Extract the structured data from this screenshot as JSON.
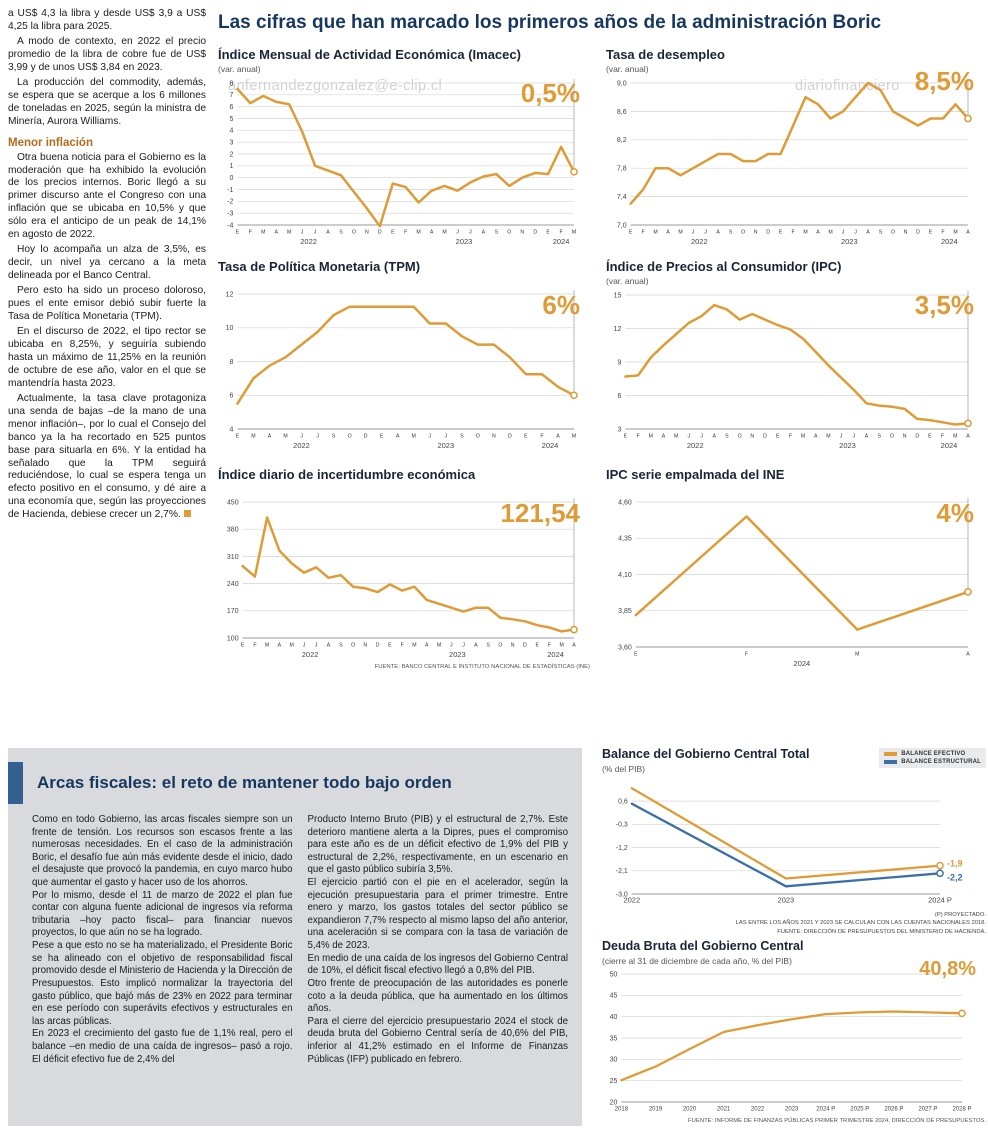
{
  "page": {
    "main_title": "Las cifras que han marcado los primeros años de la administración Boric",
    "watermark_top": "anfernandezgonzalez@e-clip.cl",
    "watermark_right": "diariofinanciero",
    "watermark_bottom": "ero#agonzalez@e-clip.cl"
  },
  "left_article": {
    "intro": [
      "a US$ 4,3 la libra y desde US$ 3,9 a US$ 4,25 la libra para 2025.",
      "A modo de contexto, en 2022 el precio promedio de la libra de cobre fue de US$ 3,99 y de unos US$ 3,84 en 2023.",
      "La producción del commodity, además, se espera que se acerque a los 6 millones de toneladas en 2025, según la ministra de Minería, Aurora Williams."
    ],
    "subhead": "Menor inflación",
    "body": [
      "Otra buena noticia para el Gobierno es la moderación que ha exhibido la evolución de los precios internos. Boric llegó a su primer discurso ante el Congreso con una inflación que se ubicaba en 10,5% y que sólo era el anticipo de un peak de 14,1% en agosto de 2022.",
      "Hoy lo acompaña un alza de 3,5%, es decir, un nivel ya cercano a la meta delineada por el Banco Central.",
      "Pero esto ha sido un proceso doloroso, pues el ente emisor debió subir fuerte la Tasa de Política Monetaria (TPM).",
      "En el discurso de 2022, el tipo rector se ubicaba en 8,25%, y seguiría subiendo hasta un máximo de 11,25% en la reunión de octubre de ese año, valor en el que se mantendría hasta 2023.",
      "Actualmente, la tasa clave protagoniza una senda de bajas –de la mano de una menor inflación–, por lo cual el Consejo del banco ya la ha recortado en 525 puntos base para situarla en 6%. Y la entidad ha señalado que la TPM seguirá reduciéndose, lo cual se espera tenga un efecto positivo en el consumo, y dé aire a una economía que, según las proyecciones de Hacienda, debiese crecer un 2,7%."
    ]
  },
  "fiscal_article": {
    "title": "Arcas fiscales: el reto de mantener todo bajo orden",
    "col1": [
      "Como en todo Gobierno, las arcas fiscales siempre son un frente de tensión. Los recursos son escasos frente a las numerosas necesidades. En el caso de la administración Boric, el desafío fue aún más evidente desde el inicio, dado el desajuste que provocó la pandemia, en cuyo marco hubo que aumentar el gasto y hacer uso de los ahorros.",
      "Por lo mismo, desde el 11 de marzo de 2022 el plan fue contar con alguna fuente adicional de ingresos vía reforma tributaria –hoy pacto fiscal– para financiar nuevos proyectos, lo que aún no se ha logrado.",
      "Pese a que esto no se ha materializado, el Presidente Boric se ha alineado con el objetivo de responsabilidad fiscal promovido desde el Ministerio de Hacienda y la Dirección de Presupuestos. Esto implicó normalizar la trayectoria del gasto público, que bajó más de 23% en 2022 para terminar en ese período con superávits efectivos y estructurales en las arcas públicas.",
      "En 2023 el crecimiento del gasto fue de 1,1% real, pero el balance –en medio de una caída de ingresos– pasó a rojo. El déficit efectivo fue de 2,4% del"
    ],
    "col2": [
      "Producto Interno Bruto (PIB) y el estructural de 2,7%. Este deterioro mantiene alerta a la Dipres, pues el compromiso para este año es de un déficit efectivo de 1,9% del PIB y estructural de 2,2%, respectivamente, en un escenario en que el gasto público subiría 3,5%.",
      "El ejercicio partió con el pie en el acelerador, según la ejecución presupuestaria para el primer trimestre. Entre enero y marzo, los gastos totales del sector público se expandieron 7,7% respecto al mismo lapso del año anterior, una aceleración si se compara con la tasa de variación de 5,4% de 2023.",
      "En medio de una caída de los ingresos del Gobierno Central de 10%, el déficit fiscal efectivo llegó a 0,8% del PIB.",
      "Otro frente de preocupación de las autoridades es ponerle coto a la deuda pública, que ha aumentado en los últimos años.",
      "Para el cierre del ejercicio presupuestario 2024 el stock de deuda bruta del Gobierno Central sería de 40,6% del PIB, inferior al 41,2% estimado en el Informe de Finanzas Públicas (IFP) publicado en febrero."
    ]
  },
  "chart_data": [
    {
      "type": "line",
      "title": "Índice Mensual de Actividad Económica (Imacec)",
      "subtitle": "(var. anual)",
      "value_label": "0,5%",
      "x_labels": [
        "E",
        "F",
        "M",
        "A",
        "M",
        "J",
        "J",
        "A",
        "S",
        "O",
        "N",
        "D",
        "E",
        "F",
        "M",
        "A",
        "M",
        "J",
        "J",
        "A",
        "S",
        "O",
        "N",
        "D",
        "E",
        "F",
        "M"
      ],
      "years": [
        {
          "label": "2022",
          "i": 5.5
        },
        {
          "label": "2023",
          "i": 17.5
        },
        {
          "label": "2024",
          "i": 25
        }
      ],
      "y_ticks": [
        8,
        7,
        6,
        5,
        4,
        3,
        2,
        1,
        0,
        -1,
        -2,
        -3,
        -4
      ],
      "ymin": -4,
      "ymax": 8,
      "guide": true,
      "series": [
        {
          "name": "Imacec var. anual %",
          "color": "#de9b36",
          "values": [
            7.5,
            6.3,
            6.9,
            6.4,
            6.2,
            3.9,
            1.0,
            0.6,
            0.2,
            -1.2,
            -2.6,
            -4.1,
            -0.5,
            -0.8,
            -2.1,
            -1.1,
            -0.7,
            -1.1,
            -0.4,
            0.1,
            0.3,
            -0.7,
            0.0,
            0.4,
            0.3,
            2.6,
            0.5
          ]
        }
      ]
    },
    {
      "type": "line",
      "title": "Tasa de desempleo",
      "subtitle": "(var. anual)",
      "value_label": "8,5%",
      "x_labels": [
        "E",
        "F",
        "M",
        "A",
        "M",
        "J",
        "J",
        "A",
        "S",
        "O",
        "N",
        "D",
        "E",
        "F",
        "M",
        "A",
        "M",
        "J",
        "J",
        "A",
        "S",
        "O",
        "N",
        "D",
        "E",
        "F",
        "M",
        "A"
      ],
      "years": [
        {
          "label": "2022",
          "i": 5.5
        },
        {
          "label": "2023",
          "i": 17.5
        },
        {
          "label": "2024",
          "i": 25.5
        }
      ],
      "y_ticks": [
        9.0,
        8.6,
        8.2,
        7.8,
        7.4,
        7.0
      ],
      "y_tick_labels": [
        "9,0",
        "8,6",
        "8,2",
        "7,8",
        "7,4",
        "7,0"
      ],
      "ymin": 7.0,
      "ymax": 9.0,
      "guide": true,
      "series": [
        {
          "name": "Tasa de desempleo %",
          "color": "#de9b36",
          "values": [
            7.3,
            7.5,
            7.8,
            7.8,
            7.7,
            7.8,
            7.9,
            8.0,
            8.0,
            7.9,
            7.9,
            8.0,
            8.0,
            8.4,
            8.8,
            8.7,
            8.5,
            8.6,
            8.8,
            9.0,
            8.9,
            8.6,
            8.5,
            8.4,
            8.5,
            8.5,
            8.7,
            8.5
          ]
        }
      ]
    },
    {
      "type": "line",
      "title": "Tasa de Política Monetaria (TPM)",
      "value_label": "6%",
      "x_labels": [
        "E",
        "M",
        "A",
        "M",
        "J",
        "J",
        "S",
        "O",
        "D",
        "E",
        "A",
        "M",
        "J",
        "J",
        "S",
        "O",
        "N",
        "D",
        "E",
        "F",
        "A",
        "M"
      ],
      "years": [
        {
          "label": "2022",
          "i": 4
        },
        {
          "label": "2023",
          "i": 13
        },
        {
          "label": "2024",
          "i": 19.5
        }
      ],
      "y_ticks": [
        12,
        10,
        8,
        6,
        4
      ],
      "ymin": 4,
      "ymax": 12,
      "guide": true,
      "series": [
        {
          "name": "TPM %",
          "color": "#de9b36",
          "values": [
            5.5,
            7.0,
            7.75,
            8.25,
            9.0,
            9.75,
            10.75,
            11.25,
            11.25,
            11.25,
            11.25,
            11.25,
            10.25,
            10.25,
            9.5,
            9.0,
            9.0,
            8.25,
            7.25,
            7.25,
            6.5,
            6.0
          ]
        }
      ]
    },
    {
      "type": "line",
      "title": "Índice de Precios al Consumidor (IPC)",
      "subtitle": "(var. anual)",
      "value_label": "3,5%",
      "x_labels": [
        "E",
        "F",
        "M",
        "A",
        "M",
        "J",
        "J",
        "A",
        "S",
        "O",
        "N",
        "D",
        "E",
        "F",
        "M",
        "A",
        "M",
        "J",
        "J",
        "A",
        "S",
        "O",
        "N",
        "D",
        "E",
        "F",
        "M",
        "A"
      ],
      "years": [
        {
          "label": "2022",
          "i": 5.5
        },
        {
          "label": "2023",
          "i": 17.5
        },
        {
          "label": "2024",
          "i": 25.5
        }
      ],
      "y_ticks": [
        15,
        12,
        9,
        6,
        3
      ],
      "ymin": 3,
      "ymax": 15,
      "guide": true,
      "series": [
        {
          "name": "IPC var. anual %",
          "color": "#de9b36",
          "values": [
            7.7,
            7.8,
            9.4,
            10.5,
            11.5,
            12.5,
            13.1,
            14.1,
            13.7,
            12.8,
            13.3,
            12.8,
            12.3,
            11.9,
            11.1,
            9.9,
            8.7,
            7.6,
            6.5,
            5.3,
            5.1,
            5.0,
            4.8,
            3.9,
            3.8,
            3.6,
            3.4,
            3.5
          ]
        }
      ]
    },
    {
      "type": "line",
      "title": "Índice diario de incertidumbre económica",
      "value_label": "121,54",
      "source": "FUENTE: BANCO CENTRAL E INSTITUTO NACIONAL DE ESTADÍSTICAS (INE)",
      "x_labels": [
        "E",
        "F",
        "M",
        "A",
        "M",
        "J",
        "J",
        "A",
        "S",
        "O",
        "N",
        "D",
        "E",
        "F",
        "M",
        "A",
        "M",
        "J",
        "J",
        "A",
        "S",
        "O",
        "N",
        "D",
        "E",
        "F",
        "M",
        "A"
      ],
      "years": [
        {
          "label": "2022",
          "i": 5.5
        },
        {
          "label": "2023",
          "i": 17.5
        },
        {
          "label": "2024",
          "i": 25.5
        }
      ],
      "y_ticks": [
        450,
        380,
        310,
        240,
        170,
        100
      ],
      "ymin": 100,
      "ymax": 450,
      "guide": true,
      "series": [
        {
          "name": "Índice de incertidumbre",
          "color": "#de9b36",
          "values": [
            285,
            258,
            410,
            325,
            292,
            268,
            282,
            255,
            262,
            232,
            228,
            218,
            238,
            222,
            232,
            198,
            188,
            178,
            168,
            178,
            178,
            152,
            148,
            143,
            133,
            127,
            117,
            121.54
          ]
        }
      ]
    },
    {
      "type": "line",
      "title": "IPC serie empalmada del INE",
      "value_label": "4%",
      "x_labels": [
        "E",
        "F",
        "M",
        "A"
      ],
      "years": [
        {
          "label": "2024",
          "i": 1.5
        }
      ],
      "y_ticks": [
        4.6,
        4.35,
        4.1,
        3.85,
        3.6
      ],
      "y_tick_labels": [
        "4,60",
        "4,35",
        "4,10",
        "3,85",
        "3,60"
      ],
      "ymin": 3.6,
      "ymax": 4.6,
      "guide": true,
      "series": [
        {
          "name": "IPC serie empalmada %",
          "color": "#de9b36",
          "values": [
            3.82,
            4.5,
            3.72,
            3.98
          ]
        }
      ]
    },
    {
      "type": "line",
      "title": "Balance del Gobierno Central Total",
      "subtitle": "(% del PIB)",
      "x_labels": [
        "2022",
        "2023",
        "2024 P"
      ],
      "x_class": "xtick-xl",
      "y_ticks": [
        0.6,
        -0.3,
        -1.2,
        -2.1,
        -3.0
      ],
      "y_tick_labels": [
        "0,6",
        "-0,3",
        "-1,2",
        "-2,1",
        "-3,0"
      ],
      "ymin": -3.0,
      "ymax": 1.3,
      "guide": false,
      "mr": 46,
      "lw": 2.3,
      "mb": 16,
      "notes": [
        "(P) PROYECTADO.",
        "LAS ENTRE LOS AÑOS 2021 Y 2023 SE CALCULAN CON LAS CUENTAS NACIONALES 2018.",
        "FUENTE: DIRECCIÓN DE PRESUPUESTOS DEL MINISTERIO DE HACIENDA."
      ],
      "series": [
        {
          "name": "BALANCE EFECTIVO",
          "color": "#de9b36",
          "values": [
            1.1,
            -2.4,
            -1.9
          ],
          "end_label": "-1,9",
          "end_dy": 1
        },
        {
          "name": "BALANCE ESTRUCTURAL",
          "color": "#3c6fa5",
          "values": [
            0.5,
            -2.7,
            -2.2
          ],
          "end_label": "-2,2",
          "end_dy": 7
        }
      ]
    },
    {
      "type": "line",
      "title": "Deuda Bruta del Gobierno Central",
      "subtitle": "(cierre al 31 de diciembre de cada año, % del PIB)",
      "value_label": "40,8%",
      "source": "FUENTE: INFORME DE FINANZAS PÚBLICAS PRIMER TRIMESTRE 2024, DIRECCIÓN DE PRESUPUESTOS.",
      "x_labels": [
        "2018",
        "2019",
        "2020",
        "2021",
        "2022",
        "2023",
        "2024 P",
        "2025 P",
        "2026 P",
        "2027 P",
        "2028 P"
      ],
      "x_class": "xtick-l",
      "y_ticks": [
        50,
        45,
        40,
        35,
        30,
        25,
        20
      ],
      "ymin": 20,
      "ymax": 50,
      "guide": false,
      "lw": 2.3,
      "mb": 14,
      "mr": 24,
      "series": [
        {
          "name": "Deuda bruta % del PIB",
          "color": "#de9b36",
          "values": [
            25.1,
            28.3,
            32.4,
            36.4,
            38.0,
            39.4,
            40.6,
            41.0,
            41.2,
            41.0,
            40.8
          ]
        }
      ]
    }
  ]
}
